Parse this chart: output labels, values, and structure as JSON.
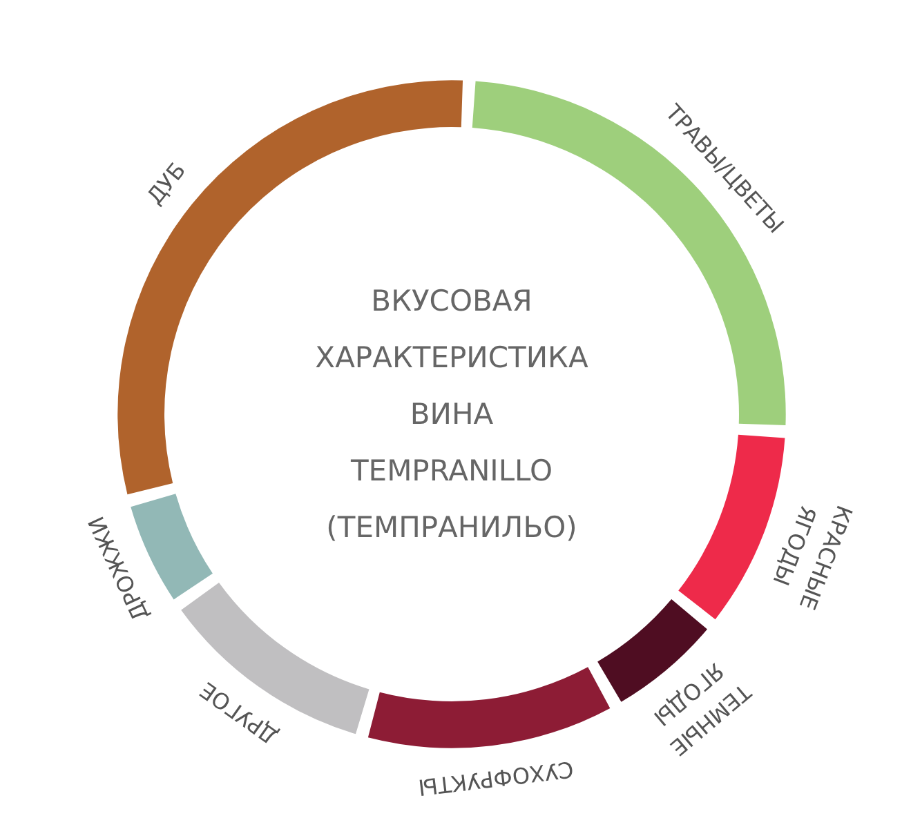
{
  "chart_data": {
    "type": "donut",
    "title": "ВКУСОВАЯ ХАРАКТЕРИСТИКА ВИНА TEMPRANILLO (ТЕМПРАНИЛЬО)",
    "categories": [
      "ТРАВЫ/ЦВЕТЫ",
      "КРАСНЫЕ ЯГОДЫ",
      "ТЕМНЫЕ ЯГОДЫ",
      "СУХОФРУКТЫ",
      "ДРУГОЕ",
      "ДРОЖЖИ",
      "ДУБ"
    ],
    "values": [
      25,
      10,
      6,
      12.5,
      11,
      5.5,
      30
    ],
    "colors": [
      "#9ecf7c",
      "#ee2a4a",
      "#4f0d22",
      "#8d1c35",
      "#c0bfc1",
      "#92b8b6",
      "#b0632c"
    ]
  }
}
